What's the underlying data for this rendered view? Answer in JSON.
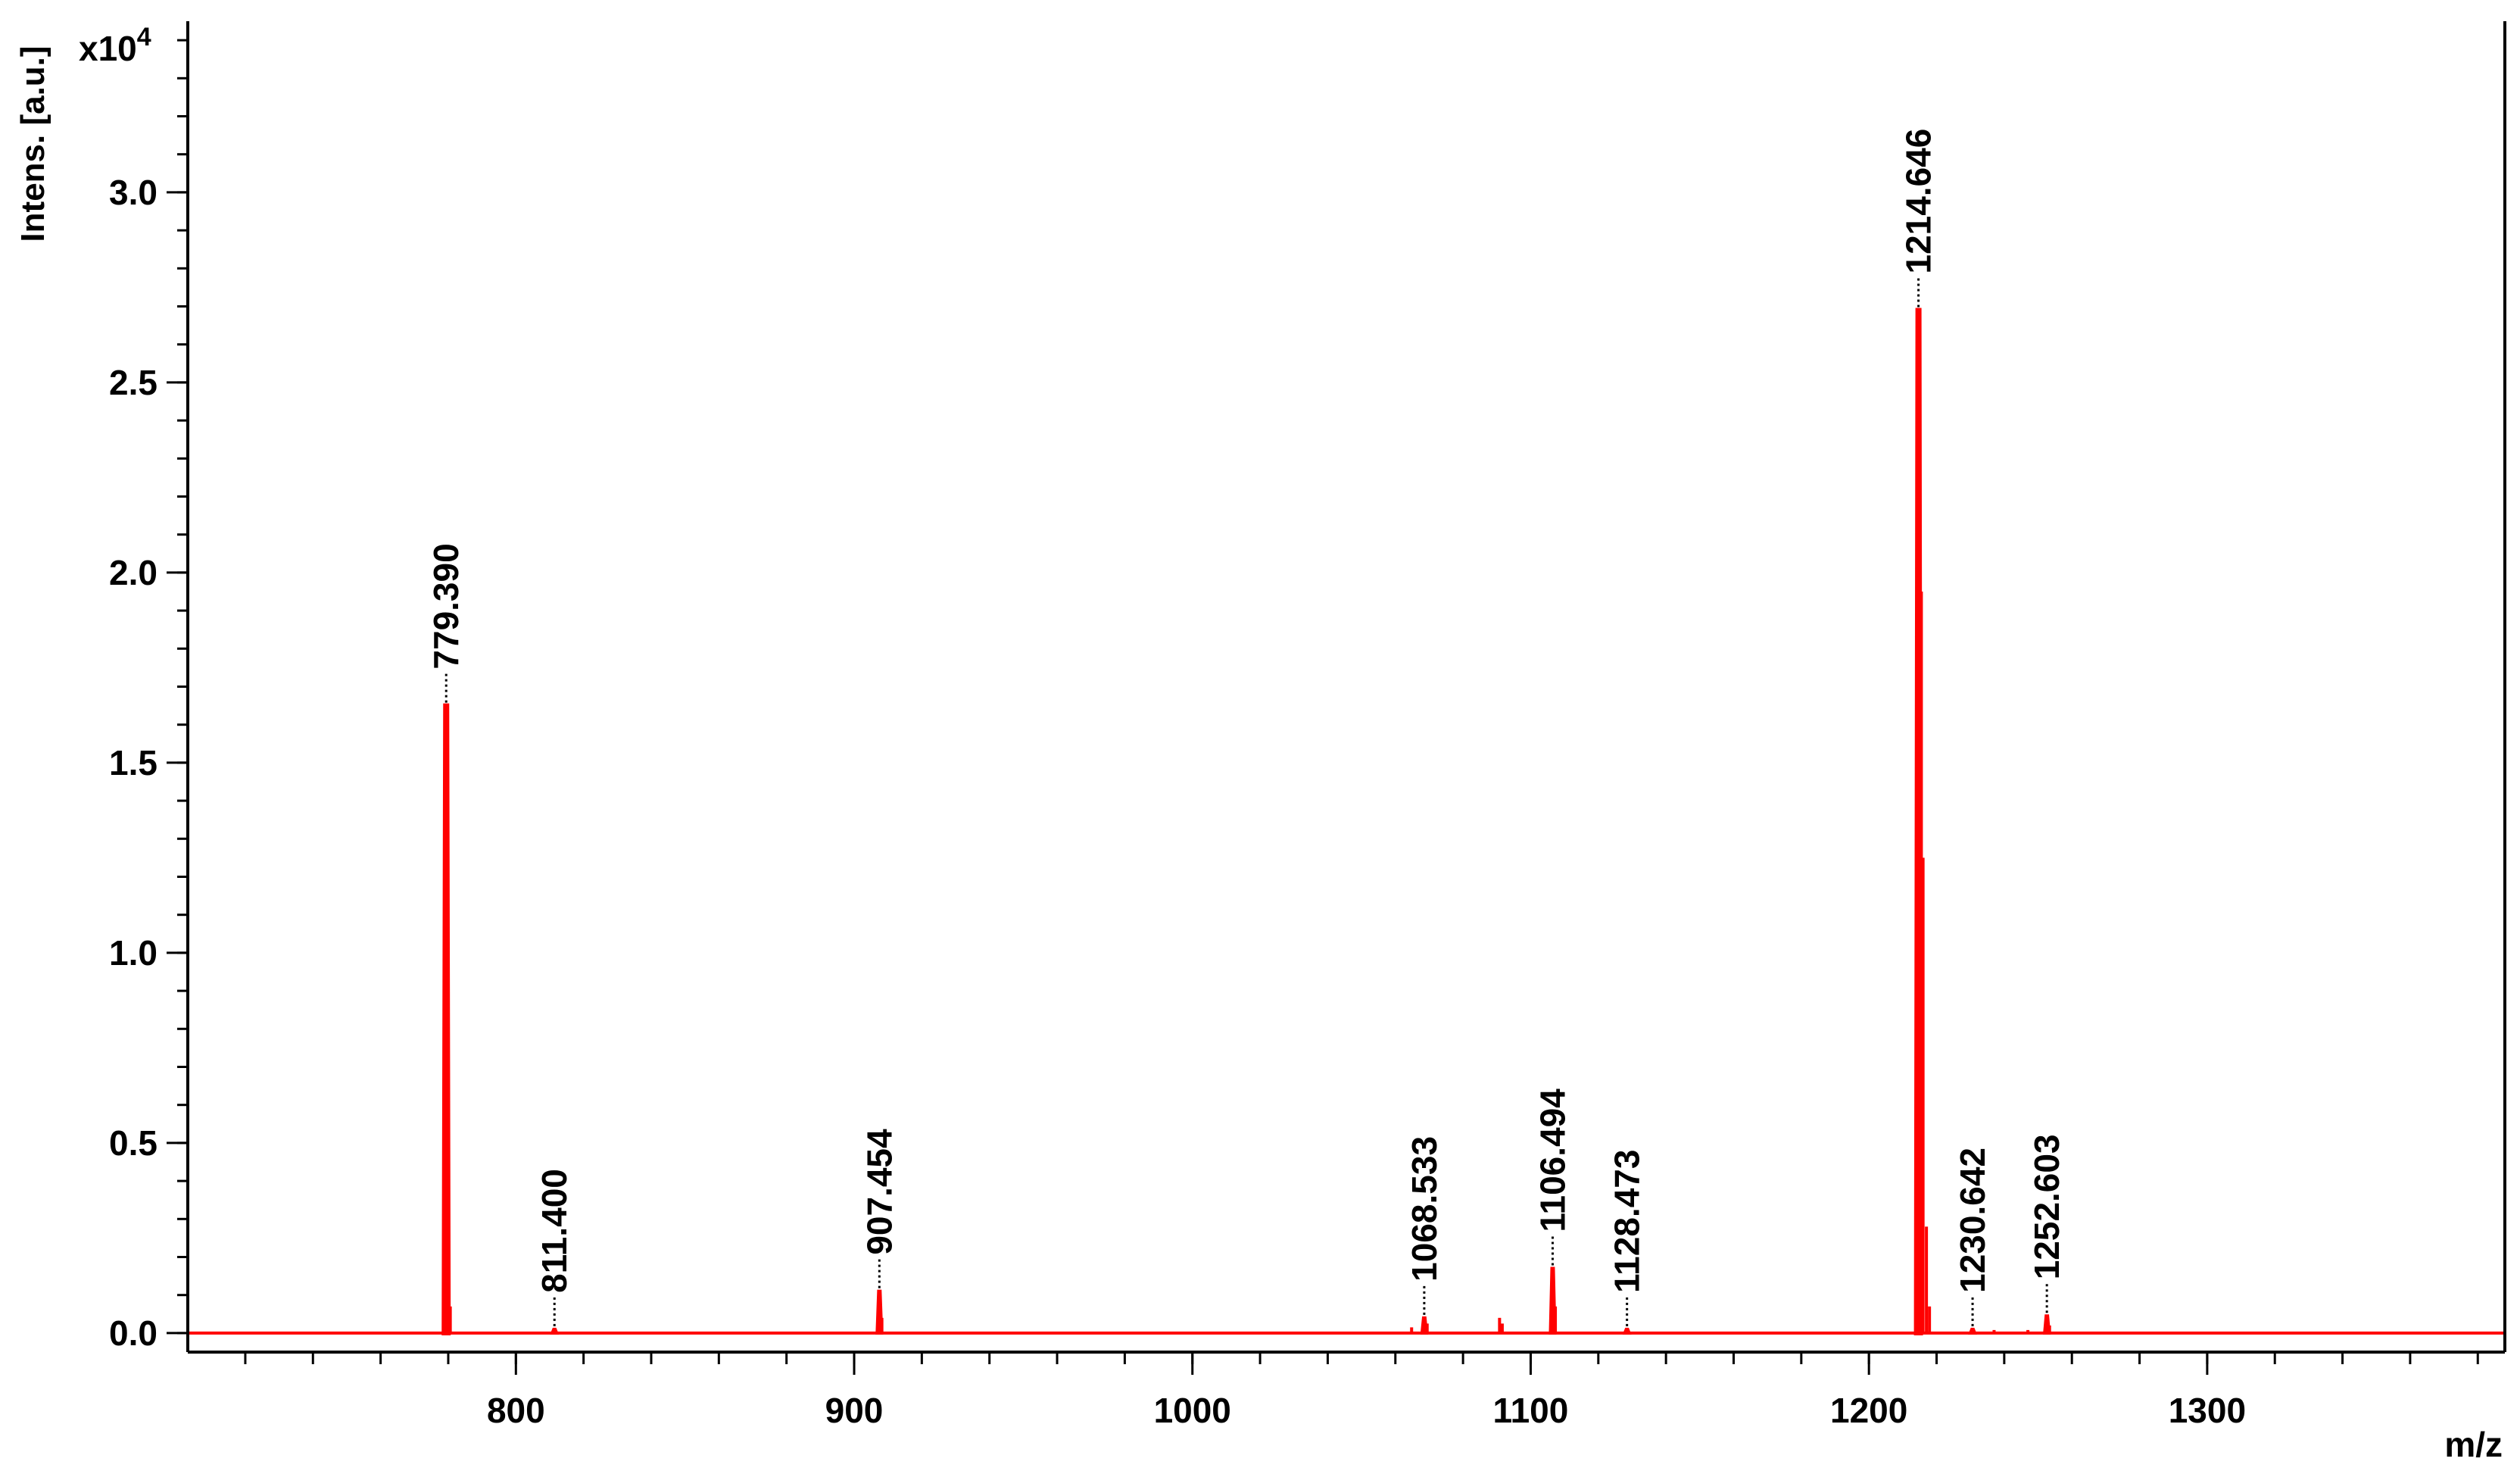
{
  "chart_data": {
    "type": "line",
    "title": "",
    "ylabel": "Intens. [a.u.]",
    "y_multiplier": "x10",
    "y_multiplier_exp": "4",
    "xlabel": "m/z",
    "xlim": [
      703,
      1388
    ],
    "ylim": [
      -0.05,
      3.45
    ],
    "xticks": [
      800,
      900,
      1000,
      1100,
      1200,
      1300
    ],
    "xtick_labels": [
      "800",
      "900",
      "1000",
      "1100",
      "1200",
      "1300"
    ],
    "yticks": [
      0.0,
      0.5,
      1.0,
      1.5,
      2.0,
      2.5,
      3.0
    ],
    "ytick_labels": [
      "0.0",
      "0.5",
      "1.0",
      "1.5",
      "2.0",
      "2.5",
      "3.0"
    ],
    "grid": false,
    "series_color": "#ff0000",
    "peaks": [
      {
        "mz": 779.39,
        "intensity": 1.65,
        "label": "779.390"
      },
      {
        "mz": 811.4,
        "intensity": 0.01,
        "label": "811.400"
      },
      {
        "mz": 907.454,
        "intensity": 0.11,
        "label": "907.454"
      },
      {
        "mz": 1068.533,
        "intensity": 0.04,
        "label": "1068.533"
      },
      {
        "mz": 1106.494,
        "intensity": 0.17,
        "label": "1106.494"
      },
      {
        "mz": 1128.473,
        "intensity": 0.01,
        "label": "1128.473"
      },
      {
        "mz": 1214.646,
        "intensity": 2.69,
        "label": "1214.646"
      },
      {
        "mz": 1230.642,
        "intensity": 0.01,
        "label": "1230.642"
      },
      {
        "mz": 1252.603,
        "intensity": 0.045,
        "label": "1252.603"
      }
    ],
    "minor_peaks": [
      {
        "mz": 780.0,
        "intensity": 0.6
      },
      {
        "mz": 780.6,
        "intensity": 0.07
      },
      {
        "mz": 908.2,
        "intensity": 0.04
      },
      {
        "mz": 1064.8,
        "intensity": 0.015
      },
      {
        "mz": 1069.4,
        "intensity": 0.025
      },
      {
        "mz": 1090.8,
        "intensity": 0.04
      },
      {
        "mz": 1091.6,
        "intensity": 0.025
      },
      {
        "mz": 1107.3,
        "intensity": 0.07
      },
      {
        "mz": 1215.1,
        "intensity": 2.12
      },
      {
        "mz": 1215.5,
        "intensity": 1.95
      },
      {
        "mz": 1216.0,
        "intensity": 1.25
      },
      {
        "mz": 1217.0,
        "intensity": 0.28
      },
      {
        "mz": 1217.9,
        "intensity": 0.07
      },
      {
        "mz": 1237.0,
        "intensity": 0.008
      },
      {
        "mz": 1247.0,
        "intensity": 0.008
      },
      {
        "mz": 1253.4,
        "intensity": 0.02
      }
    ]
  }
}
